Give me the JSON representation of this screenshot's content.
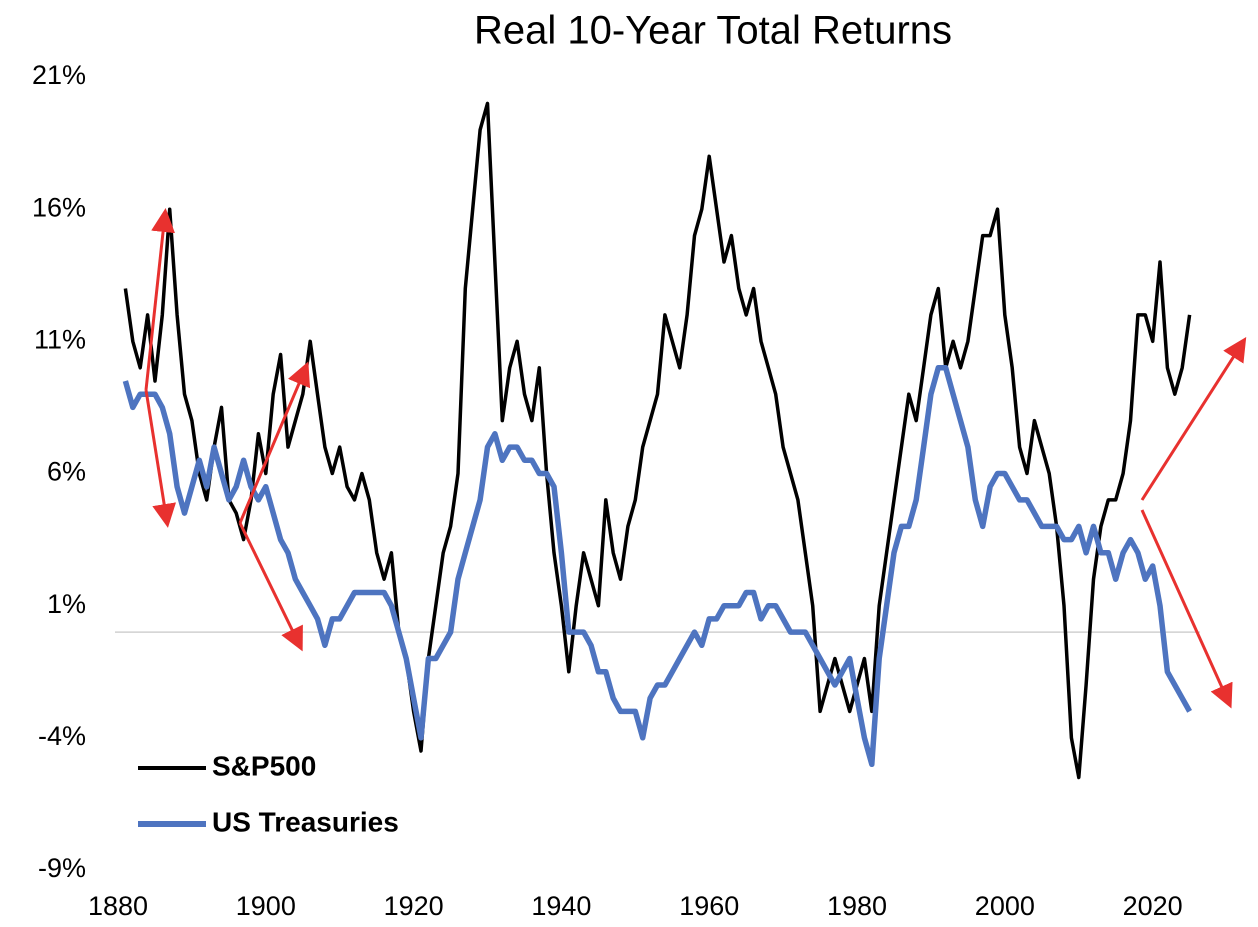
{
  "chart_data": {
    "type": "line",
    "title": "Real 10-Year Total Returns",
    "x": [
      1881,
      1882,
      1883,
      1884,
      1885,
      1886,
      1887,
      1888,
      1889,
      1890,
      1891,
      1892,
      1893,
      1894,
      1895,
      1896,
      1897,
      1898,
      1899,
      1900,
      1901,
      1902,
      1903,
      1904,
      1905,
      1906,
      1907,
      1908,
      1909,
      1910,
      1911,
      1912,
      1913,
      1914,
      1915,
      1916,
      1917,
      1918,
      1919,
      1920,
      1921,
      1922,
      1923,
      1924,
      1925,
      1926,
      1927,
      1928,
      1929,
      1930,
      1931,
      1932,
      1933,
      1934,
      1935,
      1936,
      1937,
      1938,
      1939,
      1940,
      1941,
      1942,
      1943,
      1944,
      1945,
      1946,
      1947,
      1948,
      1949,
      1950,
      1951,
      1952,
      1953,
      1954,
      1955,
      1956,
      1957,
      1958,
      1959,
      1960,
      1961,
      1962,
      1963,
      1964,
      1965,
      1966,
      1967,
      1968,
      1969,
      1970,
      1971,
      1972,
      1973,
      1974,
      1975,
      1976,
      1977,
      1978,
      1979,
      1980,
      1981,
      1982,
      1983,
      1984,
      1985,
      1986,
      1987,
      1988,
      1989,
      1990,
      1991,
      1992,
      1993,
      1994,
      1995,
      1996,
      1997,
      1998,
      1999,
      2000,
      2001,
      2002,
      2003,
      2004,
      2005,
      2006,
      2007,
      2008,
      2009,
      2010,
      2011,
      2012,
      2013,
      2014,
      2015,
      2016,
      2017,
      2018,
      2019,
      2020,
      2021,
      2022,
      2023,
      2024,
      2025
    ],
    "series": [
      {
        "name": "S&P500",
        "color": "#000000",
        "values": [
          13,
          11,
          10,
          12,
          9.5,
          12,
          16,
          12,
          9,
          8,
          6,
          5,
          7,
          8.5,
          5,
          4.5,
          3.5,
          5,
          7.5,
          6,
          9,
          10.5,
          7,
          8,
          9,
          11,
          9,
          7,
          6,
          7,
          5.5,
          5,
          6,
          5,
          3,
          2,
          3,
          0,
          -1,
          -3,
          -4.5,
          -1,
          1,
          3,
          4,
          6,
          13,
          16,
          19,
          20,
          14,
          8,
          10,
          11,
          9,
          8,
          10,
          6,
          3,
          1,
          -1.5,
          1,
          3,
          2,
          1,
          5,
          3,
          2,
          4,
          5,
          7,
          8,
          9,
          12,
          11,
          10,
          12,
          15,
          16,
          18,
          16,
          14,
          15,
          13,
          12,
          13,
          11,
          10,
          9,
          7,
          6,
          5,
          3,
          1,
          -3,
          -2,
          -1,
          -2,
          -3,
          -2,
          -1,
          -3,
          1,
          3,
          5,
          7,
          9,
          8,
          10,
          12,
          13,
          10,
          11,
          10,
          11,
          13,
          15,
          15,
          16,
          12,
          10,
          7,
          6,
          8,
          7,
          6,
          4,
          1,
          -4,
          -5.5,
          -2,
          2,
          4,
          5,
          5,
          6,
          8,
          12,
          12,
          11,
          14,
          10,
          9,
          10,
          12
        ]
      },
      {
        "name": "US Treasuries",
        "color": "#4e74c0",
        "values": [
          9.5,
          8.5,
          9,
          9,
          9,
          8.5,
          7.5,
          5.5,
          4.5,
          5.5,
          6.5,
          5.5,
          7,
          6,
          5,
          5.5,
          6.5,
          5.5,
          5,
          5.5,
          4.5,
          3.5,
          3,
          2,
          1.5,
          1,
          0.5,
          -0.5,
          0.5,
          0.5,
          1,
          1.5,
          1.5,
          1.5,
          1.5,
          1.5,
          1,
          0,
          -1,
          -2.5,
          -4,
          -1,
          -1,
          -0.5,
          0,
          2,
          3,
          4,
          5,
          7,
          7.5,
          6.5,
          7,
          7,
          6.5,
          6.5,
          6,
          6,
          5.5,
          3,
          0,
          0,
          0,
          -0.5,
          -1.5,
          -1.5,
          -2.5,
          -3,
          -3,
          -3,
          -4,
          -2.5,
          -2,
          -2,
          -1.5,
          -1,
          -0.5,
          0,
          -0.5,
          0.5,
          0.5,
          1,
          1,
          1,
          1.5,
          1.5,
          0.5,
          1,
          1,
          0.5,
          0,
          0,
          0,
          -0.5,
          -1,
          -1.5,
          -2,
          -1.5,
          -1,
          -2.5,
          -4,
          -5,
          -1,
          1,
          3,
          4,
          4,
          5,
          7,
          9,
          10,
          10,
          9,
          8,
          7,
          5,
          4,
          5.5,
          6,
          6,
          5.5,
          5,
          5,
          4.5,
          4,
          4,
          4,
          3.5,
          3.5,
          4,
          3,
          4,
          3,
          3,
          2,
          3,
          3.5,
          3,
          2,
          2.5,
          1,
          -1.5,
          -2,
          -2.5,
          -3
        ]
      }
    ],
    "xlim": [
      1880,
      2026
    ],
    "xticks": [
      1880,
      1900,
      1920,
      1940,
      1960,
      1980,
      2000,
      2020
    ],
    "ylim": [
      -9,
      21
    ],
    "yticks": [
      {
        "value": -9,
        "label": "-9%"
      },
      {
        "value": -4,
        "label": "-4%"
      },
      {
        "value": 1,
        "label": "1%"
      },
      {
        "value": 6,
        "label": "6%"
      },
      {
        "value": 11,
        "label": "11%"
      },
      {
        "value": 16,
        "label": "16%"
      },
      {
        "value": 21,
        "label": "21%"
      }
    ],
    "legend": "lower left"
  }
}
